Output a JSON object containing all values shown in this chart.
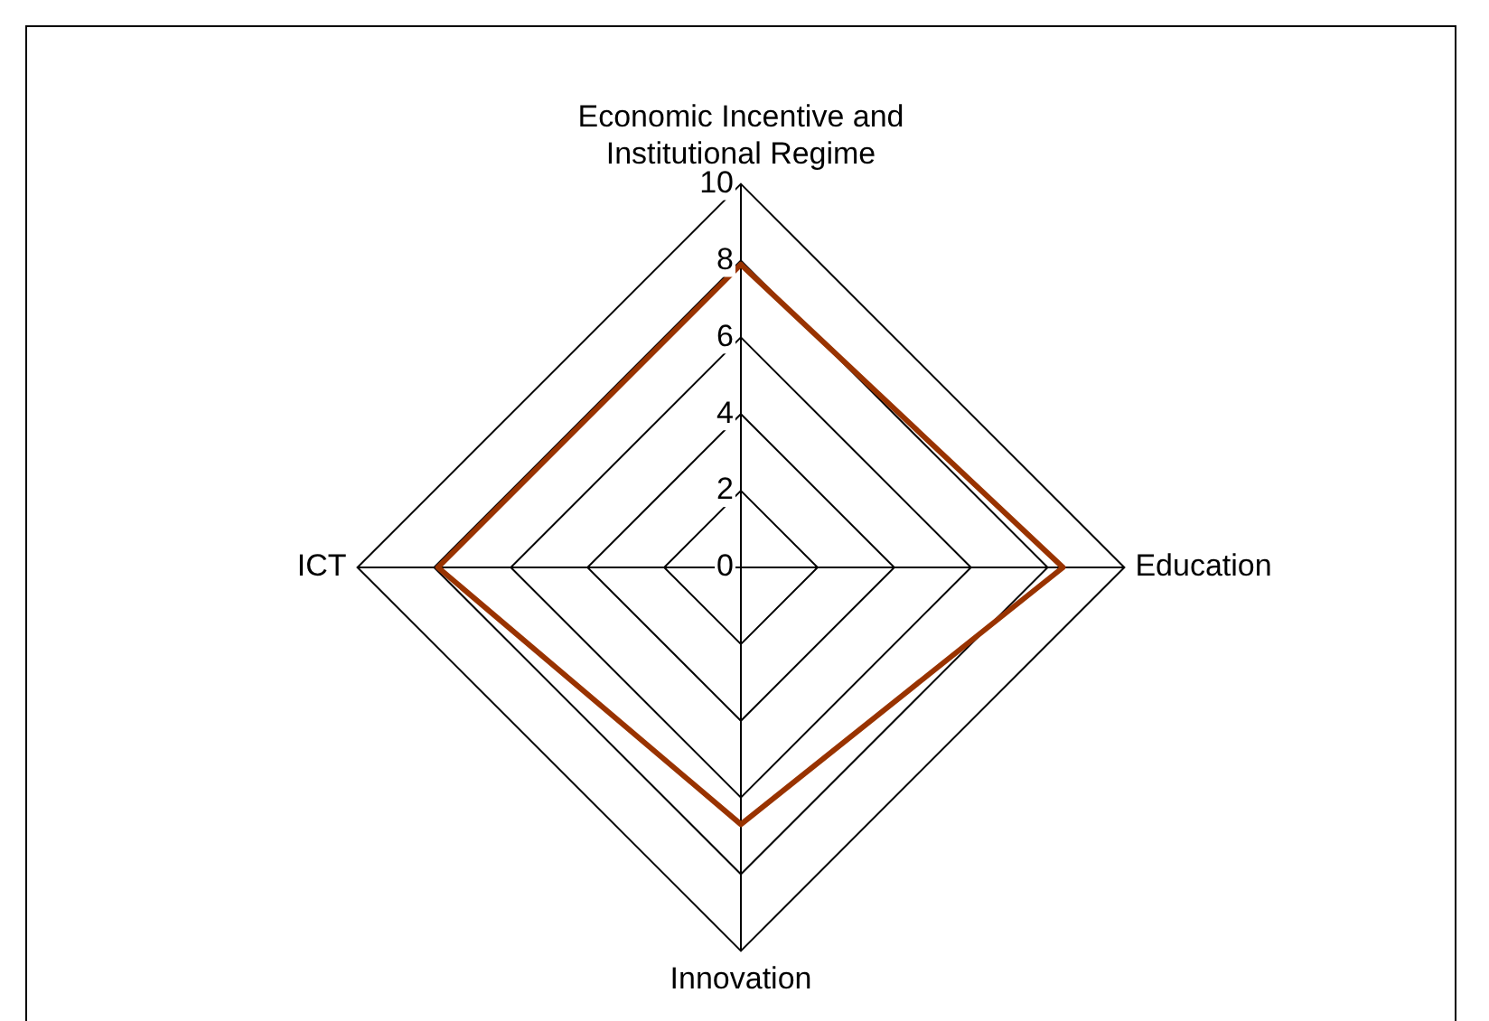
{
  "chart_data": {
    "type": "radar",
    "categories": [
      "Economic Incentive and Institutional Regime",
      "Education",
      "Innovation",
      "ICT"
    ],
    "series": [
      {
        "color": "#993300",
        "values": [
          7.9,
          8.4,
          6.7,
          7.9
        ]
      }
    ],
    "ylim": [
      0,
      10
    ],
    "yticks": [
      0,
      2,
      4,
      6,
      8,
      10
    ],
    "grid": true,
    "legend": false,
    "marker": "none",
    "line_style": "solid"
  }
}
